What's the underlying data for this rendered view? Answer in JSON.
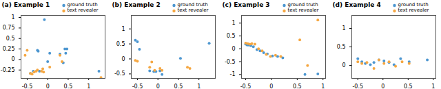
{
  "chart_data": [
    {
      "type": "scatter",
      "title": "(a) Example 1",
      "series": [
        {
          "name": "ground truth",
          "color": "#4C96D0",
          "x": [
            -0.42,
            -0.35,
            -0.25,
            -0.23,
            -0.2,
            -0.08,
            0.0,
            0.05,
            0.3,
            0.38,
            0.42,
            0.44,
            0.47,
            1.25
          ],
          "values": [
            -0.33,
            -0.28,
            0.22,
            0.2,
            -0.28,
            0.95,
            -0.05,
            0.15,
            0.13,
            -0.08,
            0.25,
            0.15,
            0.25,
            -0.28
          ]
        },
        {
          "name": "text revealer",
          "color": "#F5A742",
          "x": [
            -0.55,
            -0.5,
            -0.42,
            -0.38,
            -0.33,
            -0.28,
            -0.25,
            -0.15,
            -0.12,
            -0.1,
            0.05,
            0.3,
            0.35,
            1.3
          ],
          "values": [
            0.1,
            0.22,
            -0.33,
            -0.35,
            -0.3,
            -0.28,
            -0.25,
            -0.28,
            -0.22,
            -0.3,
            -0.18,
            0.1,
            -0.05,
            -0.43
          ]
        }
      ],
      "xlim": [
        -0.65,
        1.4
      ],
      "xticks": [
        -0.5,
        0,
        0.5,
        1
      ],
      "ylim": [
        -0.45,
        1.05
      ],
      "yticks": [
        1,
        0.75,
        0.5,
        0.25,
        0,
        -0.25
      ],
      "legend": "upper right"
    },
    {
      "type": "scatter",
      "title": "(b) Example 2",
      "series": [
        {
          "name": "ground truth",
          "color": "#4C96D0",
          "x": [
            -0.55,
            -0.5,
            -0.45,
            -0.2,
            -0.1,
            -0.05,
            0.05,
            0.1,
            0.55,
            1.25
          ],
          "values": [
            0.62,
            0.57,
            0.32,
            -0.4,
            -0.42,
            -0.42,
            -0.4,
            -0.52,
            0.02,
            0.52
          ]
        },
        {
          "name": "text revealer",
          "color": "#F5A742",
          "x": [
            -0.55,
            -0.5,
            -0.2,
            -0.15,
            -0.08,
            0.05,
            0.1,
            0.72,
            0.78
          ],
          "values": [
            -0.05,
            -0.08,
            -0.28,
            -0.1,
            -0.38,
            -0.32,
            -0.38,
            -0.28,
            -0.32
          ]
        }
      ],
      "xlim": [
        -0.65,
        1.4
      ],
      "xticks": [
        -0.5,
        0,
        0.5,
        1
      ],
      "ylim": [
        -0.65,
        1.45
      ],
      "yticks": [
        1,
        0.5,
        0,
        -0.5
      ],
      "legend": "upper right"
    },
    {
      "type": "scatter",
      "title": "(c) Example 3",
      "series": [
        {
          "name": "ground truth",
          "color": "#4C96D0",
          "x": [
            -0.5,
            -0.47,
            -0.44,
            -0.4,
            -0.35,
            -0.28,
            -0.22,
            -0.15,
            -0.08,
            0.02,
            0.12,
            0.22,
            0.65,
            0.9
          ],
          "values": [
            0.18,
            0.15,
            0.15,
            0.12,
            0.08,
            -0.03,
            -0.08,
            -0.15,
            -0.2,
            -0.28,
            -0.3,
            -0.35,
            -1.0,
            -0.98
          ]
        },
        {
          "name": "text revealer",
          "color": "#F5A742",
          "x": [
            -0.5,
            -0.46,
            -0.42,
            -0.38,
            -0.32,
            -0.25,
            -0.18,
            -0.1,
            -0.02,
            0.08,
            0.18,
            0.55,
            0.7,
            0.9
          ],
          "values": [
            0.22,
            0.2,
            0.18,
            0.2,
            0.18,
            0.0,
            -0.08,
            -0.22,
            -0.3,
            -0.25,
            -0.3,
            0.35,
            -0.65,
            1.12
          ]
        }
      ],
      "xlim": [
        -0.58,
        1.05
      ],
      "xticks": [
        -0.5,
        0,
        0.5,
        1
      ],
      "ylim": [
        -1.15,
        1.3
      ],
      "yticks": [
        1,
        0.5,
        0,
        -0.5,
        -1
      ],
      "legend": "upper right"
    },
    {
      "type": "scatter",
      "title": "(d) Example 4",
      "series": [
        {
          "name": "ground truth",
          "color": "#4C96D0",
          "x": [
            -0.5,
            -0.42,
            -0.35,
            -0.25,
            -0.18,
            -0.08,
            0.02,
            0.12,
            0.22,
            0.35,
            0.52,
            0.88
          ],
          "values": [
            0.18,
            0.1,
            0.05,
            0.02,
            0.08,
            0.15,
            0.12,
            0.08,
            0.02,
            0.18,
            0.1,
            0.15
          ]
        },
        {
          "name": "text revealer",
          "color": "#F5A742",
          "x": [
            -0.5,
            -0.42,
            -0.32,
            -0.18,
            -0.08,
            0.02,
            0.12,
            0.25,
            0.38,
            0.52
          ],
          "values": [
            0.1,
            0.05,
            0.08,
            -0.08,
            0.15,
            0.05,
            0.1,
            -0.02,
            0.1,
            0.05
          ]
        }
      ],
      "xlim": [
        -0.62,
        1.05
      ],
      "xticks": [
        -0.5,
        0,
        0.5,
        1
      ],
      "ylim": [
        -0.35,
        1.35
      ],
      "yticks": [
        1,
        0.5,
        0
      ],
      "legend": "upper right"
    }
  ]
}
